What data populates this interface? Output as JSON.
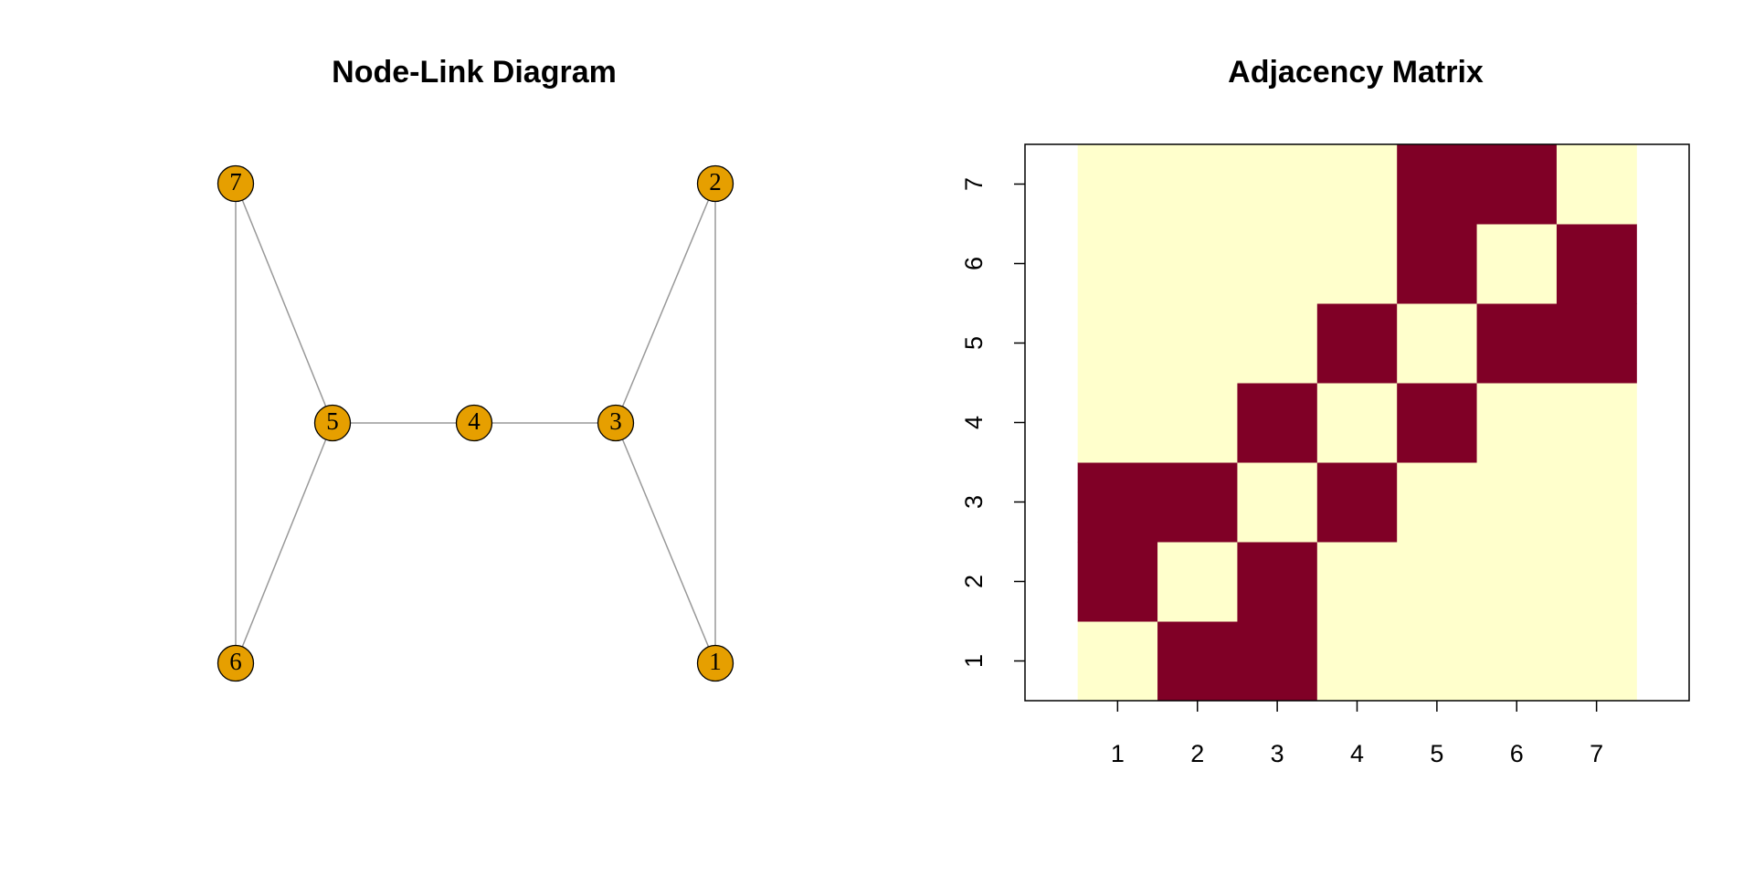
{
  "chart_data": [
    {
      "type": "network",
      "title": "Node-Link Diagram",
      "nodes": [
        "1",
        "2",
        "3",
        "4",
        "5",
        "6",
        "7"
      ],
      "edges": [
        [
          0,
          1
        ],
        [
          0,
          2
        ],
        [
          1,
          2
        ],
        [
          2,
          3
        ],
        [
          3,
          4
        ],
        [
          4,
          5
        ],
        [
          4,
          6
        ],
        [
          5,
          6
        ]
      ],
      "node_color": "#e69f00",
      "edge_color": "#999999"
    },
    {
      "type": "heatmap",
      "title": "Adjacency Matrix",
      "x": [
        1,
        2,
        3,
        4,
        5,
        6,
        7
      ],
      "y": [
        1,
        2,
        3,
        4,
        5,
        6,
        7
      ],
      "values": [
        [
          0,
          1,
          1,
          0,
          0,
          0,
          0
        ],
        [
          1,
          0,
          1,
          0,
          0,
          0,
          0
        ],
        [
          1,
          1,
          0,
          1,
          0,
          0,
          0
        ],
        [
          0,
          0,
          1,
          0,
          1,
          0,
          0
        ],
        [
          0,
          0,
          0,
          1,
          0,
          1,
          1
        ],
        [
          0,
          0,
          0,
          0,
          1,
          0,
          1
        ],
        [
          0,
          0,
          0,
          0,
          1,
          1,
          0
        ]
      ],
      "colors": [
        "#ffffcc",
        "#800026"
      ],
      "xlim": [
        -0.16,
        8.16
      ],
      "ylim": [
        0.5,
        7.5
      ],
      "xticks": [
        1,
        2,
        3,
        4,
        5,
        6,
        7
      ],
      "yticks": [
        1,
        2,
        3,
        4,
        5,
        6,
        7
      ]
    }
  ]
}
